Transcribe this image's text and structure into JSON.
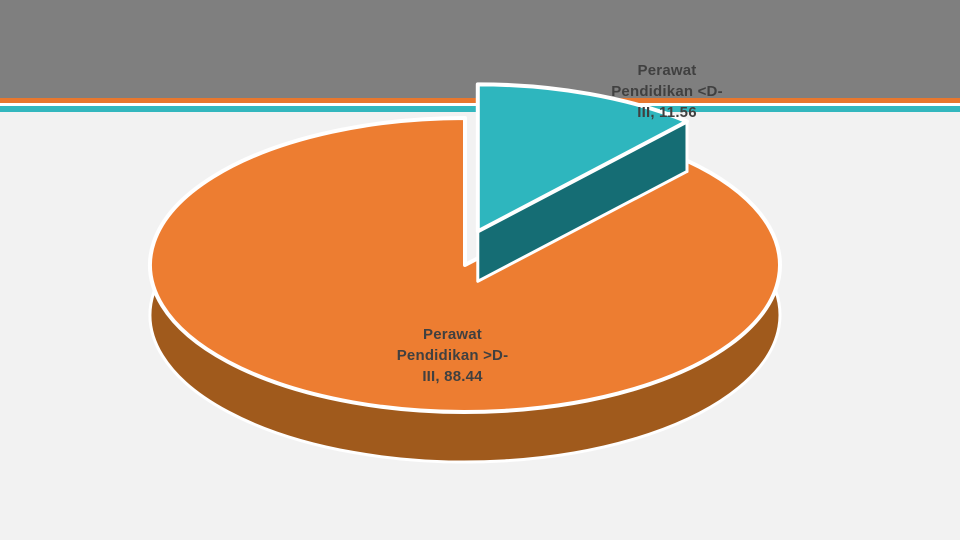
{
  "page": {
    "background": "#F2F2F2"
  },
  "header": {
    "band_color": "#7F7F7F",
    "accent_line_orange": "#E8772E",
    "accent_line_teal": "#33B7BE"
  },
  "chart_data": {
    "type": "pie",
    "style": "3d-exploded",
    "title": "",
    "legend": "none",
    "start_angle_deg": 0,
    "labels_style": {
      "color": "#404040"
    },
    "slices": [
      {
        "label": "Perawat Pendidikan <D-III",
        "value": 11.56,
        "color": "#2EB6BE",
        "side_color": "#156D74",
        "exploded": true,
        "data_label": "Perawat\nPendidikan <D-\nIII, 11.56"
      },
      {
        "label": "Perawat Pendidikan >D-III",
        "value": 88.44,
        "color": "#ED7D31",
        "side_color": "#A05A1C",
        "exploded": false,
        "data_label": "Perawat\nPendidikan >D-\nIII, 88.44"
      }
    ]
  }
}
